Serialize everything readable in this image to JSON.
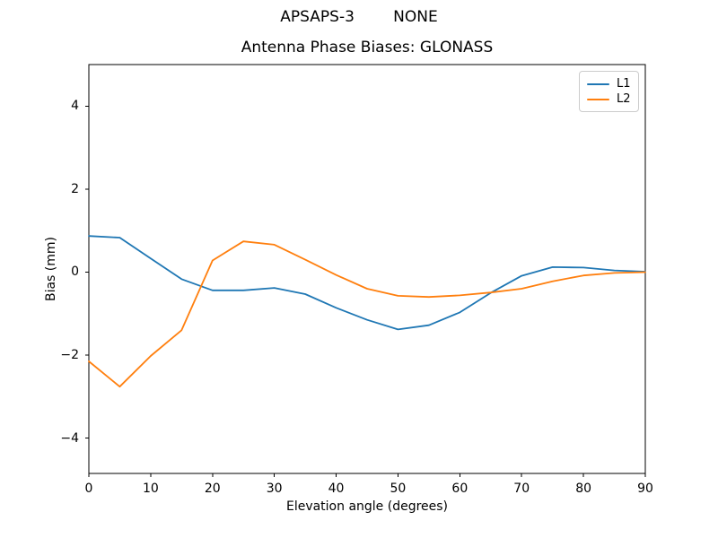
{
  "suptitle": "APSAPS-3        NONE",
  "chart_data": {
    "type": "line",
    "title": "Antenna Phase Biases: GLONASS",
    "xlabel": "Elevation angle (degrees)",
    "ylabel": "Bias (mm)",
    "xlim": [
      0,
      90
    ],
    "ylim": [
      -4.85,
      5.0
    ],
    "x_ticks": [
      0,
      10,
      20,
      30,
      40,
      50,
      60,
      70,
      80,
      90
    ],
    "y_ticks": [
      -4,
      -2,
      0,
      2,
      4
    ],
    "grid": false,
    "legend_position": "upper right",
    "x": [
      0,
      5,
      10,
      15,
      20,
      25,
      30,
      35,
      40,
      45,
      50,
      55,
      60,
      65,
      70,
      75,
      80,
      85,
      90
    ],
    "series": [
      {
        "name": "L1",
        "color": "#1f77b4",
        "values": [
          0.87,
          0.83,
          0.33,
          -0.17,
          -0.44,
          -0.44,
          -0.38,
          -0.53,
          -0.86,
          -1.15,
          -1.38,
          -1.28,
          -0.97,
          -0.5,
          -0.09,
          0.12,
          0.11,
          0.04,
          0.01
        ]
      },
      {
        "name": "L2",
        "color": "#ff7f0e",
        "values": [
          -2.15,
          -2.76,
          -2.02,
          -1.4,
          0.28,
          0.74,
          0.66,
          0.3,
          -0.07,
          -0.4,
          -0.57,
          -0.6,
          -0.56,
          -0.49,
          -0.4,
          -0.22,
          -0.08,
          -0.02,
          0.0
        ]
      }
    ],
    "axis_color": "#000000",
    "background_color": "#ffffff",
    "legend_edge_color": "#cccccc"
  }
}
